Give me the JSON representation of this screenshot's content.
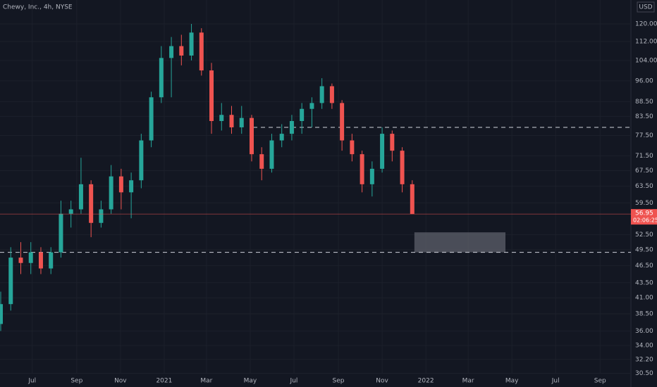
{
  "chart_data": {
    "type": "candlestick",
    "title": "Chewy, Inc., 4h, NYSE",
    "currency": "USD",
    "countdown": "02:06:25",
    "log_scale": true,
    "grid": true,
    "up_color": "#26a69a",
    "down_color": "#ef5350",
    "x": [
      "2020-05-18",
      "2020-06-01",
      "2020-06-15",
      "2020-06-29",
      "2020-07-13",
      "2020-07-27",
      "2020-08-10",
      "2020-08-24",
      "2020-09-07",
      "2020-09-21",
      "2020-10-05",
      "2020-10-19",
      "2020-11-02",
      "2020-11-16",
      "2020-11-30",
      "2020-12-14",
      "2020-12-28",
      "2021-01-11",
      "2021-01-25",
      "2021-02-08",
      "2021-02-22",
      "2021-03-08",
      "2021-03-22",
      "2021-04-05",
      "2021-04-19",
      "2021-05-03",
      "2021-05-17",
      "2021-05-31",
      "2021-06-14",
      "2021-06-28",
      "2021-07-12",
      "2021-07-26",
      "2021-08-09",
      "2021-08-23",
      "2021-09-06",
      "2021-09-20",
      "2021-10-04",
      "2021-10-18",
      "2021-11-01",
      "2021-11-15",
      "2021-11-29",
      "2021-12-13"
    ],
    "open": [
      37,
      40,
      48,
      47,
      49,
      46,
      49,
      57,
      58,
      64,
      55,
      58,
      66,
      62,
      65,
      76,
      90,
      105,
      110,
      106,
      116,
      100,
      82,
      84,
      80,
      83,
      72,
      68,
      76,
      78,
      82,
      86,
      88,
      94,
      88,
      76,
      72,
      64,
      68,
      78,
      73,
      64
    ],
    "high": [
      42,
      50,
      51,
      51,
      50,
      50,
      60,
      60,
      71,
      65,
      60,
      69,
      68,
      67,
      78,
      92,
      110,
      114,
      115,
      120,
      118,
      103,
      88,
      87,
      87,
      84,
      74,
      78,
      81,
      84,
      88,
      90,
      97,
      95,
      89,
      78,
      73,
      70,
      80,
      79,
      74,
      65
    ],
    "low": [
      36,
      39,
      45,
      45,
      45,
      45,
      48,
      54,
      57,
      52,
      54,
      57,
      58,
      56,
      63,
      74,
      88,
      90,
      102,
      104,
      98,
      78,
      79,
      78,
      78,
      70,
      65,
      67,
      74,
      76,
      78,
      80,
      86,
      86,
      73,
      70,
      62,
      61,
      67,
      70,
      62,
      57
    ],
    "close": [
      40,
      48,
      47,
      49,
      46,
      49,
      57,
      58,
      64,
      55,
      58,
      66,
      62,
      65,
      76,
      90,
      105,
      110,
      106,
      116,
      100,
      82,
      84,
      80,
      83,
      72,
      68,
      76,
      78,
      82,
      86,
      88,
      94,
      88,
      76,
      72,
      64,
      68,
      78,
      73,
      64,
      56.95
    ],
    "horizontal_lines": [
      80,
      49
    ],
    "zone": {
      "x": [
        "2021-12-16",
        "2022-04-22"
      ],
      "y": [
        49,
        53
      ]
    },
    "xlim": [
      "2020-05-17",
      "2022-10-14"
    ],
    "xticks": [
      {
        "value": "2020-07-01",
        "label": "Jul"
      },
      {
        "value": "2020-09-01",
        "label": "Sep"
      },
      {
        "value": "2020-11-01",
        "label": "Nov"
      },
      {
        "value": "2021-01-01",
        "label": "2021"
      },
      {
        "value": "2021-03-01",
        "label": "Mar"
      },
      {
        "value": "2021-05-01",
        "label": "May"
      },
      {
        "value": "2021-07-01",
        "label": "Jul"
      },
      {
        "value": "2021-09-01",
        "label": "Sep"
      },
      {
        "value": "2021-11-01",
        "label": "Nov"
      },
      {
        "value": "2022-01-01",
        "label": "2022"
      },
      {
        "value": "2022-03-01",
        "label": "Mar"
      },
      {
        "value": "2022-05-01",
        "label": "May"
      },
      {
        "value": "2022-07-01",
        "label": "Jul"
      },
      {
        "value": "2022-09-01",
        "label": "Sep"
      }
    ],
    "ylim": [
      28.9,
      131.8
    ],
    "yticks": [
      {
        "value": 120,
        "label": "120.00"
      },
      {
        "value": 112,
        "label": "112.00"
      },
      {
        "value": 104,
        "label": "104.00"
      },
      {
        "value": 96,
        "label": "96.00"
      },
      {
        "value": 88.5,
        "label": "88.50"
      },
      {
        "value": 83.5,
        "label": "83.50"
      },
      {
        "value": 77.5,
        "label": "77.50"
      },
      {
        "value": 71.5,
        "label": "71.50"
      },
      {
        "value": 67.5,
        "label": "67.50"
      },
      {
        "value": 63.5,
        "label": "63.50"
      },
      {
        "value": 59.5,
        "label": "59.50"
      },
      {
        "value": 52.5,
        "label": "52.50"
      },
      {
        "value": 49.5,
        "label": "49.50"
      },
      {
        "value": 46.5,
        "label": "46.50"
      },
      {
        "value": 43.5,
        "label": "43.50"
      },
      {
        "value": 41,
        "label": "41.00"
      },
      {
        "value": 38.5,
        "label": "38.50"
      },
      {
        "value": 36,
        "label": "36.00"
      },
      {
        "value": 34,
        "label": "34.00"
      },
      {
        "value": 32.2,
        "label": "32.20"
      },
      {
        "value": 30.5,
        "label": "30.50"
      }
    ]
  }
}
